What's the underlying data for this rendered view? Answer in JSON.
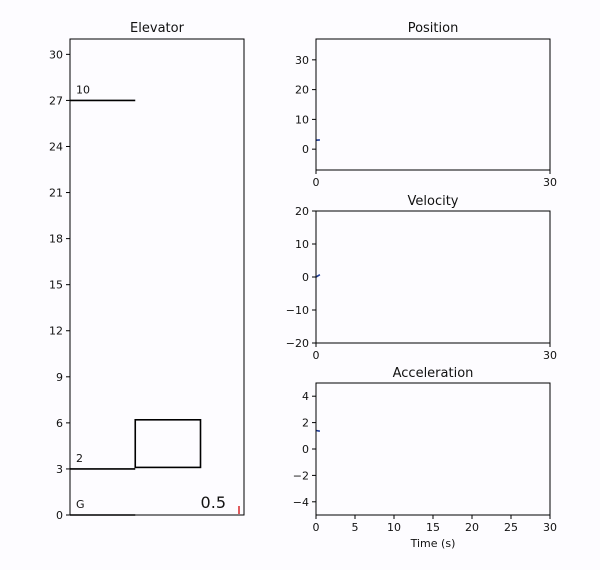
{
  "chart_data": [
    {
      "type": "line",
      "title": "Elevator",
      "ylim": [
        0,
        31
      ],
      "yticks": [
        "0",
        "3",
        "6",
        "9",
        "12",
        "15",
        "18",
        "21",
        "24",
        "27",
        "30"
      ],
      "floors": [
        {
          "label": "G",
          "y": 0
        },
        {
          "label": "2",
          "y": 3
        },
        {
          "label": "10",
          "y": 27
        }
      ],
      "car": {
        "bottom": 3.1,
        "top": 6.2
      },
      "time_readout": "0.5",
      "marker_color": "#d62728"
    },
    {
      "type": "line",
      "title": "Position",
      "xlim": [
        0,
        30
      ],
      "ylim": [
        -7,
        37
      ],
      "xticks": [
        "0",
        "30"
      ],
      "yticks": [
        "0",
        "10",
        "20",
        "30"
      ],
      "series": [
        {
          "x": [
            0,
            0.5
          ],
          "values": [
            3.0,
            3.1
          ],
          "color": "#1f3d99"
        }
      ]
    },
    {
      "type": "line",
      "title": "Velocity",
      "xlim": [
        0,
        30
      ],
      "ylim": [
        -20,
        20
      ],
      "xticks": [
        "0",
        "30"
      ],
      "yticks": [
        "20",
        "10",
        "0",
        "−10",
        "−20"
      ],
      "series": [
        {
          "x": [
            0,
            0.5
          ],
          "values": [
            0.0,
            0.7
          ],
          "color": "#1f3d99"
        }
      ]
    },
    {
      "type": "line",
      "title": "Acceleration",
      "xlabel": "Time (s)",
      "xlim": [
        0,
        30
      ],
      "ylim": [
        -5,
        5
      ],
      "xticks": [
        "0",
        "5",
        "10",
        "15",
        "20",
        "25",
        "30"
      ],
      "yticks": [
        "4",
        "2",
        "0",
        "−2",
        "−4"
      ],
      "series": [
        {
          "x": [
            0,
            0.5
          ],
          "values": [
            1.4,
            1.35
          ],
          "color": "#1f3d99"
        }
      ]
    }
  ]
}
